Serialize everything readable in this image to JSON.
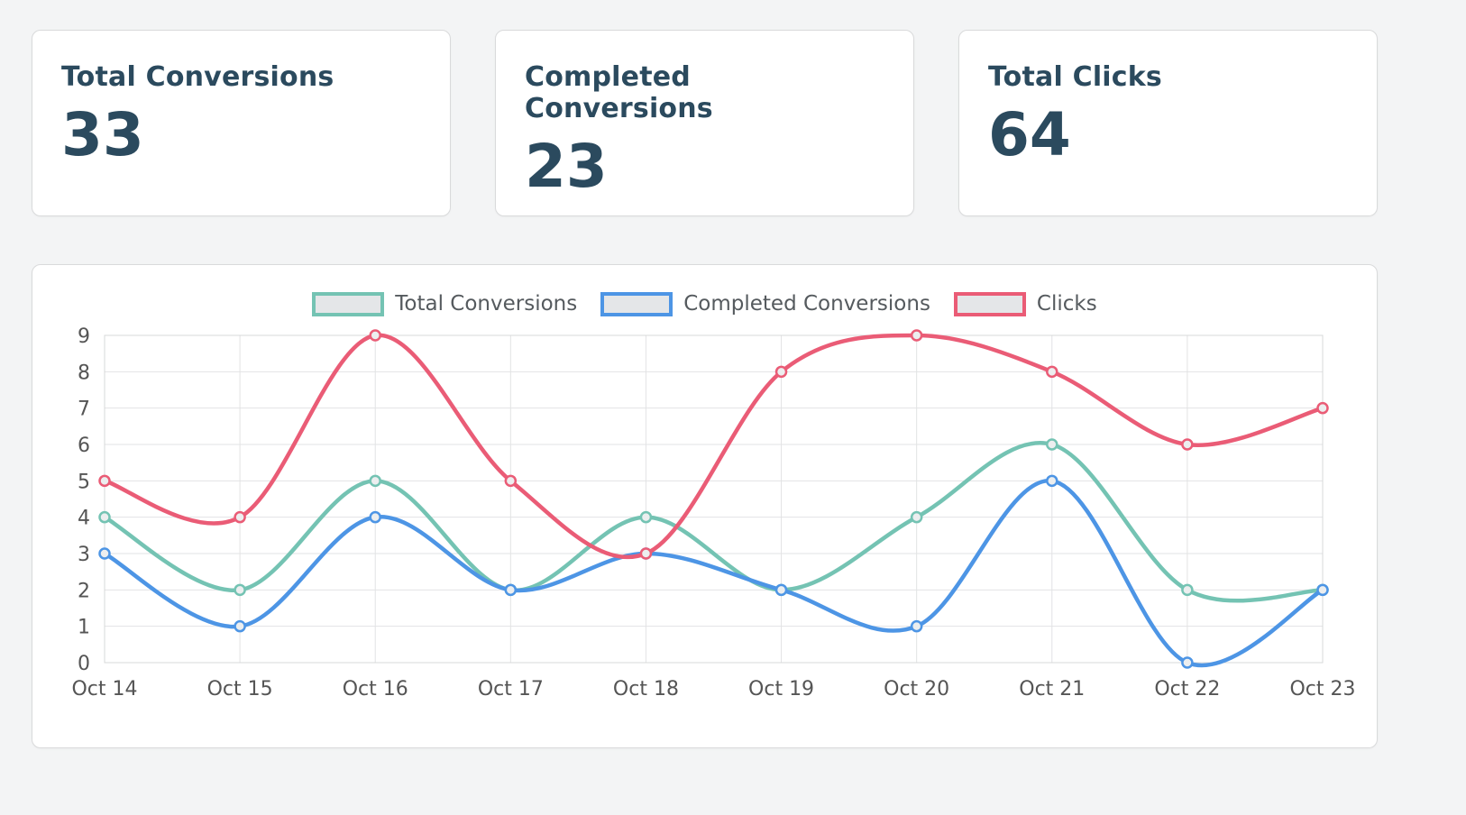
{
  "colors": {
    "heading_text": "#2b4a5e",
    "axis_text": "#555555",
    "grid_line": "#e2e3e4",
    "plot_border": "#d7d8d9",
    "point_fill": "#eceeef",
    "card_background": "#ffffff",
    "page_background": "#f3f4f5"
  },
  "stats": [
    {
      "label": "Total Conversions",
      "value": "33"
    },
    {
      "label": "Completed Conversions",
      "value": "23"
    },
    {
      "label": "Total Clicks",
      "value": "64"
    }
  ],
  "chart_data": {
    "type": "line",
    "title": "",
    "xlabel": "",
    "ylabel": "",
    "categories": [
      "Oct 14",
      "Oct 15",
      "Oct 16",
      "Oct 17",
      "Oct 18",
      "Oct 19",
      "Oct 20",
      "Oct 21",
      "Oct 22",
      "Oct 23"
    ],
    "series": [
      {
        "name": "Total Conversions",
        "color": "#74c3b3",
        "values": [
          4,
          2,
          5,
          2,
          4,
          2,
          4,
          6,
          2,
          2
        ]
      },
      {
        "name": "Completed Conversions",
        "color": "#4d95e5",
        "values": [
          3,
          1,
          4,
          2,
          3,
          2,
          1,
          5,
          0,
          2
        ]
      },
      {
        "name": "Clicks",
        "color": "#ea5c76",
        "values": [
          5,
          4,
          9,
          5,
          3,
          8,
          9,
          8,
          6,
          7
        ]
      }
    ],
    "ylim": [
      0,
      9
    ],
    "y_ticks": [
      0,
      1,
      2,
      3,
      4,
      5,
      6,
      7,
      8,
      9
    ],
    "grid": true,
    "legend_position": "top",
    "curve": "smooth"
  }
}
